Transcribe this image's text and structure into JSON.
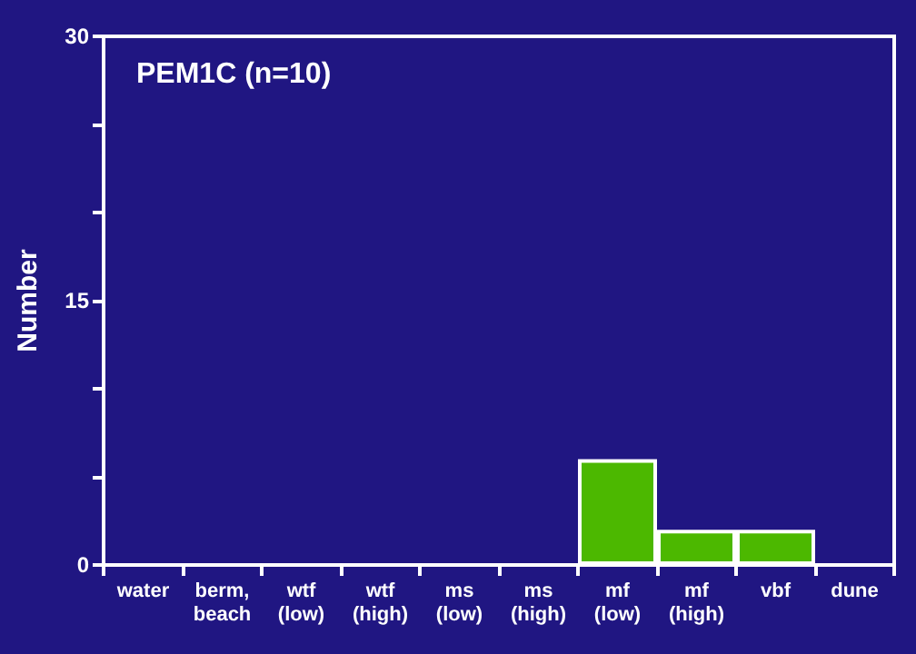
{
  "chart_data": {
    "type": "bar",
    "title": "PEM1C (n=10)",
    "ylabel": "Number",
    "categories": [
      "water",
      "berm,\nbeach",
      "wtf\n(low)",
      "wtf\n(high)",
      "ms\n(low)",
      "ms\n(high)",
      "mf\n(low)",
      "mf\n(high)",
      "vbf",
      "dune"
    ],
    "values": [
      0,
      0,
      0,
      0,
      0,
      0,
      6,
      2,
      2,
      0
    ],
    "color": "#4cb800",
    "ylim": [
      0,
      30
    ],
    "yticks": [
      0,
      {
        "value": 5,
        "label": null
      },
      {
        "value": 10,
        "label": null
      },
      15,
      {
        "value": 20,
        "label": null
      },
      {
        "value": 25,
        "label": null
      },
      30
    ],
    "grid": false
  }
}
